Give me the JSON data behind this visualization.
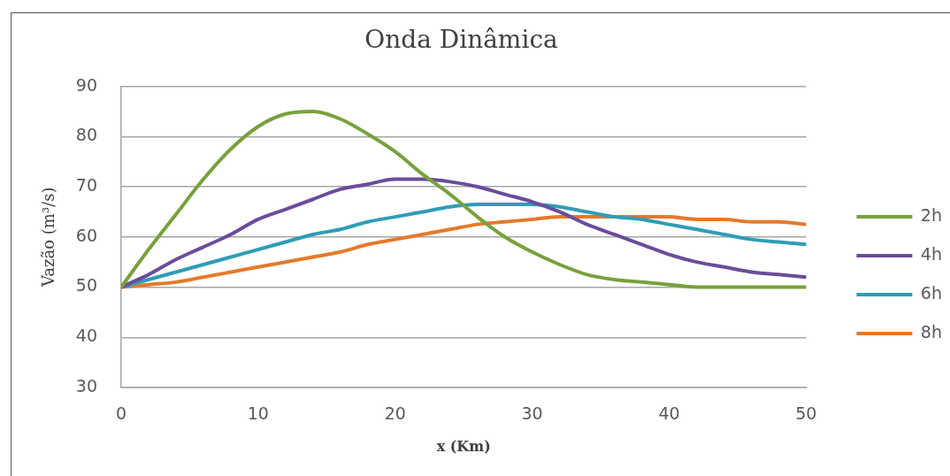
{
  "chart_data": {
    "type": "line",
    "title": "Onda Dinâmica",
    "xlabel": "x (Km)",
    "ylabel": "Vazão (m³/s)",
    "x": [
      0,
      2,
      4,
      6,
      8,
      10,
      12,
      14,
      16,
      18,
      20,
      22,
      24,
      26,
      28,
      30,
      32,
      34,
      36,
      38,
      40,
      42,
      44,
      46,
      48,
      50
    ],
    "series": [
      {
        "name": "2h",
        "color": "#77a13c",
        "values": [
          50,
          57.5,
          64.5,
          71.5,
          77.5,
          82,
          84.5,
          85,
          83.5,
          80.5,
          77,
          72.5,
          68.5,
          64,
          60,
          57,
          54.5,
          52.5,
          51.5,
          51,
          50.5,
          50,
          50,
          50,
          50,
          50
        ]
      },
      {
        "name": "4h",
        "color": "#6b4c9a",
        "values": [
          50,
          52.5,
          55.5,
          58,
          60.5,
          63.5,
          65.5,
          67.5,
          69.5,
          70.5,
          71.5,
          71.5,
          71,
          70,
          68.5,
          67,
          65,
          62.5,
          60.5,
          58.5,
          56.5,
          55,
          54,
          53,
          52.5,
          52
        ]
      },
      {
        "name": "6h",
        "color": "#2f9db5",
        "values": [
          50,
          51.5,
          53,
          54.5,
          56,
          57.5,
          59,
          60.5,
          61.5,
          63,
          64,
          65,
          66,
          66.5,
          66.5,
          66.5,
          66,
          65,
          64,
          63.5,
          62.5,
          61.5,
          60.5,
          59.5,
          59,
          58.5
        ]
      },
      {
        "name": "8h",
        "color": "#e5792b",
        "values": [
          50,
          50.5,
          51,
          52,
          53,
          54,
          55,
          56,
          57,
          58.5,
          59.5,
          60.5,
          61.5,
          62.5,
          63,
          63.5,
          64,
          64,
          64,
          64,
          64,
          63.5,
          63.5,
          63,
          63,
          62.5
        ]
      }
    ],
    "xlim": [
      0,
      50
    ],
    "xticks": [
      0,
      10,
      20,
      30,
      40,
      50
    ],
    "ylim": [
      30,
      90
    ],
    "yticks": [
      30,
      40,
      50,
      60,
      70,
      80,
      90
    ],
    "grid": "y",
    "legend": "right",
    "marker": "none",
    "line_style": "solid"
  }
}
